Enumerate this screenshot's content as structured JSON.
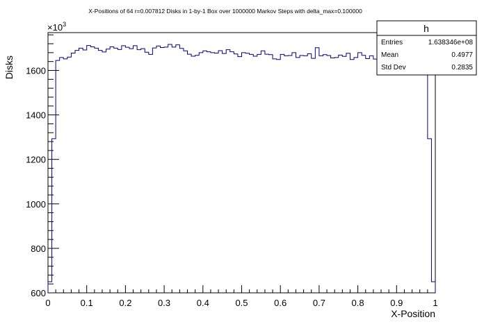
{
  "chart_data": {
    "type": "histogram",
    "title": "X-Positions of 64 r=0.007812 Disks in 1-by-1 Box over 1000000 Markov Steps with delta_max=0.100000",
    "xlabel": "X-Position",
    "ylabel": "Disks",
    "y_multiplier": "×10",
    "y_multiplier_exp": "3",
    "xlim": [
      0,
      1
    ],
    "ylim": [
      600,
      1770
    ],
    "x_ticks": [
      "0",
      "0.1",
      "0.2",
      "0.3",
      "0.4",
      "0.5",
      "0.6",
      "0.7",
      "0.8",
      "0.9",
      "1"
    ],
    "x_tick_values": [
      0,
      0.1,
      0.2,
      0.3,
      0.4,
      0.5,
      0.6,
      0.7,
      0.8,
      0.9,
      1
    ],
    "y_ticks": [
      "600",
      "800",
      "1000",
      "1200",
      "1400",
      "1600"
    ],
    "y_tick_values": [
      600,
      800,
      1000,
      1200,
      1400,
      1600
    ],
    "line_color": "#000080",
    "bins": 100,
    "bin_range": [
      0,
      1
    ],
    "values": [
      650,
      1293,
      1645,
      1658,
      1652,
      1660,
      1678,
      1690,
      1700,
      1692,
      1712,
      1706,
      1700,
      1690,
      1683,
      1696,
      1706,
      1700,
      1694,
      1711,
      1704,
      1698,
      1711,
      1693,
      1698,
      1682,
      1672,
      1701,
      1710,
      1703,
      1705,
      1717,
      1705,
      1715,
      1699,
      1688,
      1673,
      1664,
      1668,
      1680,
      1688,
      1684,
      1680,
      1678,
      1689,
      1676,
      1693,
      1684,
      1674,
      1662,
      1680,
      1677,
      1672,
      1664,
      1672,
      1688,
      1673,
      1671,
      1652,
      1649,
      1672,
      1666,
      1667,
      1680,
      1658,
      1667,
      1666,
      1675,
      1654,
      1702,
      1666,
      1671,
      1667,
      1656,
      1658,
      1669,
      1663,
      1677,
      1649,
      1658,
      1680,
      1668,
      1653,
      1666,
      1651,
      1660,
      1658,
      1666,
      1650,
      1662,
      1654,
      1663,
      1655,
      1640,
      1641,
      1652,
      1658,
      1648,
      1293,
      650
    ]
  },
  "stats_box": {
    "name": "h",
    "rows": [
      {
        "label": "Entries",
        "value": "1.638346e+08"
      },
      {
        "label": "Mean",
        "value": "0.4977"
      },
      {
        "label": "Std Dev",
        "value": "0.2835"
      }
    ]
  }
}
